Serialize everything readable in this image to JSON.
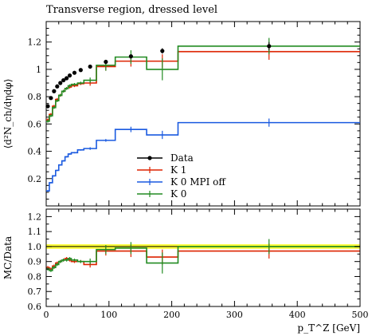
{
  "chart_data": [
    {
      "type": "line",
      "panel": "main",
      "title": "Transverse region, dressed level",
      "ylabel": "⟨d²N_ch/dηdφ⟩",
      "xlim": [
        0,
        500
      ],
      "ylim": [
        0,
        1.35
      ],
      "yticks": [
        0.2,
        0.4,
        0.6,
        0.8,
        1,
        1.2
      ],
      "ytick_labels": [
        "0.2",
        "0.4",
        "0.6",
        "0.8",
        "1",
        "1.2"
      ],
      "bin_edges": [
        0,
        5,
        10,
        15,
        20,
        25,
        30,
        35,
        40,
        50,
        60,
        80,
        110,
        160,
        210,
        500
      ],
      "series": [
        {
          "name": "Data",
          "kind": "points",
          "color": "#000000",
          "x": [
            2.5,
            7.5,
            12.5,
            17.5,
            22.5,
            27.5,
            32.5,
            37.5,
            45,
            55,
            70,
            95,
            135,
            185,
            355
          ],
          "values": [
            0.73,
            0.79,
            0.84,
            0.875,
            0.9,
            0.92,
            0.935,
            0.955,
            0.975,
            0.995,
            1.02,
            1.055,
            1.095,
            1.135,
            1.17
          ],
          "errors": [
            0.01,
            0.01,
            0.01,
            0.01,
            0.01,
            0.01,
            0.01,
            0.01,
            0.01,
            0.01,
            0.01,
            0.01,
            0.015,
            0.02,
            0.03
          ]
        },
        {
          "name": "K 1",
          "kind": "step",
          "color": "#dd2200",
          "values": [
            0.63,
            0.67,
            0.73,
            0.78,
            0.81,
            0.84,
            0.86,
            0.87,
            0.88,
            0.895,
            0.9,
            1.02,
            1.06,
            1.06,
            1.13
          ],
          "errors": [
            0.01,
            0.01,
            0.01,
            0.01,
            0.01,
            0.01,
            0.01,
            0.01,
            0.01,
            0.01,
            0.02,
            0.03,
            0.04,
            0.05,
            0.06
          ]
        },
        {
          "name": "K 0 MPI off",
          "kind": "step",
          "color": "#1a5ae0",
          "values": [
            0.11,
            0.17,
            0.22,
            0.26,
            0.3,
            0.33,
            0.36,
            0.38,
            0.39,
            0.41,
            0.42,
            0.48,
            0.56,
            0.52,
            0.61
          ],
          "errors": [
            0.005,
            0.005,
            0.005,
            0.005,
            0.005,
            0.005,
            0.005,
            0.005,
            0.005,
            0.005,
            0.01,
            0.01,
            0.02,
            0.03,
            0.03
          ]
        },
        {
          "name": "K 0",
          "kind": "step",
          "color": "#228b22",
          "values": [
            0.62,
            0.66,
            0.72,
            0.77,
            0.81,
            0.84,
            0.86,
            0.88,
            0.89,
            0.9,
            0.92,
            1.03,
            1.09,
            1.0,
            1.17
          ],
          "errors": [
            0.01,
            0.01,
            0.01,
            0.01,
            0.01,
            0.01,
            0.01,
            0.01,
            0.01,
            0.01,
            0.02,
            0.04,
            0.05,
            0.08,
            0.06
          ]
        }
      ],
      "legend_position": "center"
    },
    {
      "type": "line",
      "panel": "ratio",
      "ylabel": "MC/Data",
      "xlabel": "p_T^Z [GeV]",
      "xlim": [
        0,
        500
      ],
      "ylim": [
        0.6,
        1.25
      ],
      "xticks": [
        0,
        100,
        200,
        300,
        400,
        500
      ],
      "xtick_labels": [
        "0",
        "100",
        "200",
        "300",
        "400",
        "500"
      ],
      "yticks": [
        0.6,
        0.7,
        0.8,
        0.9,
        1.0,
        1.1,
        1.2
      ],
      "ytick_labels": [
        "0.6",
        "0.7",
        "0.8",
        "0.9",
        "1.0",
        "1.1",
        "1.2"
      ],
      "data_band": [
        0.985,
        1.015
      ],
      "bin_edges": [
        0,
        5,
        10,
        15,
        20,
        25,
        30,
        35,
        40,
        50,
        60,
        80,
        110,
        160,
        210,
        500
      ],
      "series": [
        {
          "name": "K 1",
          "kind": "step",
          "color": "#dd2200",
          "values": [
            0.86,
            0.85,
            0.87,
            0.89,
            0.9,
            0.91,
            0.92,
            0.91,
            0.9,
            0.9,
            0.88,
            0.97,
            0.97,
            0.93,
            0.97
          ],
          "errors": [
            0.01,
            0.01,
            0.01,
            0.01,
            0.01,
            0.01,
            0.01,
            0.01,
            0.01,
            0.01,
            0.02,
            0.03,
            0.04,
            0.05,
            0.05
          ]
        },
        {
          "name": "K 0",
          "kind": "step",
          "color": "#228b22",
          "values": [
            0.85,
            0.84,
            0.86,
            0.88,
            0.9,
            0.91,
            0.91,
            0.92,
            0.91,
            0.9,
            0.9,
            0.98,
            0.99,
            0.89,
            1.0
          ],
          "errors": [
            0.01,
            0.01,
            0.01,
            0.01,
            0.01,
            0.01,
            0.01,
            0.01,
            0.01,
            0.01,
            0.02,
            0.03,
            0.04,
            0.07,
            0.05
          ]
        }
      ]
    }
  ]
}
